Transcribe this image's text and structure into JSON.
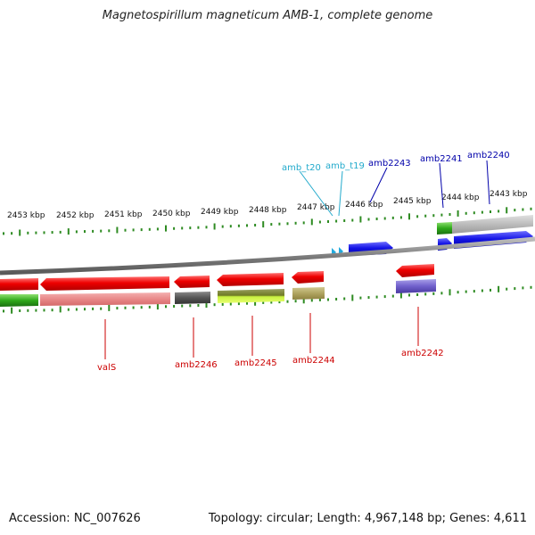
{
  "title": "Magnetospirillum magneticum AMB-1, complete genome",
  "footer": {
    "accession": "Accession: NC_007626",
    "summary": "Topology: circular; Length: 4,967,148 bp; Genes: 4,611"
  },
  "colors": {
    "backbone": "#8a8a8a",
    "tick": "#2e8b22",
    "gene_fwd": "#1010e0",
    "gene_rev": "#e00000",
    "label_trna": "#22aacc",
    "label_fwd": "#0000aa",
    "label_rev": "#cc0000"
  },
  "kbp_labels": [
    "2453 kbp",
    "2452 kbp",
    "2451 kbp",
    "2450 kbp",
    "2449 kbp",
    "2448 kbp",
    "2447 kbp",
    "2446 kbp",
    "2445 kbp",
    "2444 kbp",
    "2443 kbp"
  ],
  "gene_labels": {
    "top": [
      "amb_t20",
      "amb_t19",
      "amb2243",
      "amb2241",
      "amb2240"
    ],
    "bottom": [
      "valS",
      "amb2246",
      "amb2245",
      "amb2244",
      "amb2242"
    ]
  }
}
